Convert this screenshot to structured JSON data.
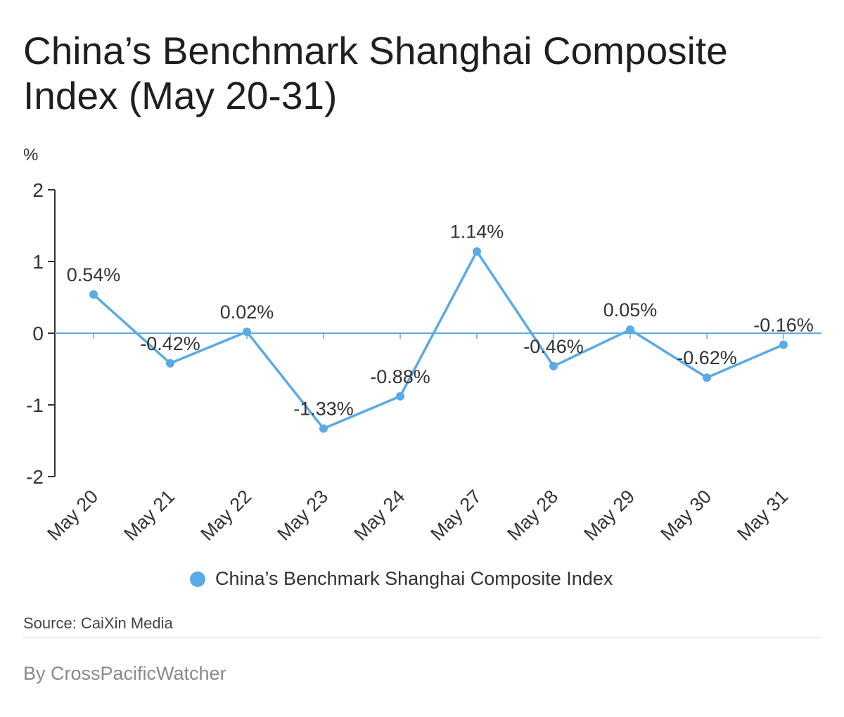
{
  "title": "China’s Benchmark Shanghai Composite Index (May 20-31)",
  "source": "Source: CaiXin Media",
  "byline": "By CrossPacificWatcher",
  "colors": {
    "series": "#5aaae6",
    "axis": "#333333",
    "zero_line": "#5aaae6"
  },
  "chart_data": {
    "type": "line",
    "ylabel": "%",
    "xlabel": "",
    "ylim": [
      -2,
      2
    ],
    "yticks": [
      2,
      1,
      0,
      -1,
      -2
    ],
    "categories": [
      "May 20",
      "May 21",
      "May 22",
      "May 23",
      "May 24",
      "May 27",
      "May 28",
      "May 29",
      "May 30",
      "May 31"
    ],
    "series": [
      {
        "name": "China’s Benchmark Shanghai Composite Index",
        "values": [
          0.54,
          -0.42,
          0.02,
          -1.33,
          -0.88,
          1.14,
          -0.46,
          0.05,
          -0.62,
          -0.16
        ],
        "labels": [
          "0.54%",
          "-0.42%",
          "0.02%",
          "-1.33%",
          "-0.88%",
          "1.14%",
          "-0.46%",
          "0.05%",
          "-0.62%",
          "-0.16%"
        ]
      }
    ],
    "grid": false,
    "legend_position": "bottom-center"
  }
}
